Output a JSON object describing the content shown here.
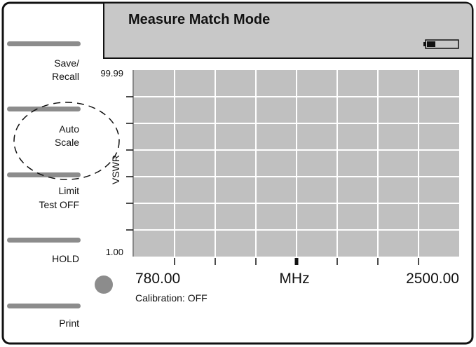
{
  "header": {
    "title": "Measure Match Mode"
  },
  "softkeys": [
    {
      "lines": [
        "Save/",
        "Recall"
      ]
    },
    {
      "lines": [
        "Auto",
        "Scale"
      ]
    },
    {
      "lines": [
        "Limit",
        "Test OFF"
      ]
    },
    {
      "lines": [
        "HOLD"
      ]
    },
    {
      "lines": [
        "Print"
      ]
    }
  ],
  "plot": {
    "y_top": "99.99",
    "y_bottom": "1.00",
    "y_label": "VSWR",
    "x_start": "780.00",
    "x_unit": "MHz",
    "x_end": "2500.00"
  },
  "status": "Calibration: OFF"
}
